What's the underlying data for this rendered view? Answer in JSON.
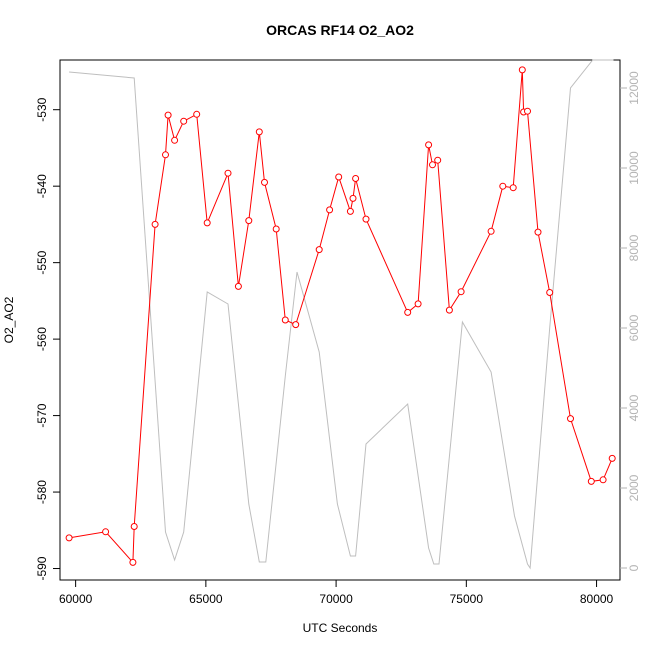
{
  "chart_data": {
    "type": "line",
    "title": "ORCAS RF14 O2_AO2",
    "xlabel": "UTC Seconds",
    "ylabel": "O2_AO2",
    "xlim": [
      59400,
      80900
    ],
    "ylim": [
      -591.5,
      -523.5
    ],
    "y2lim": [
      -300,
      12700
    ],
    "x_ticks": [
      60000,
      65000,
      70000,
      75000,
      80000
    ],
    "x_tick_labels": [
      "60000",
      "65000",
      "70000",
      "75000",
      "80000"
    ],
    "y_ticks": [
      -590,
      -580,
      -570,
      -560,
      -550,
      -540,
      -530
    ],
    "y_tick_labels": [
      "-590",
      "-580",
      "-570",
      "-560",
      "-550",
      "-540",
      "-530"
    ],
    "y2_ticks": [
      0,
      2000,
      4000,
      6000,
      8000,
      10000,
      12000
    ],
    "y2_tick_labels": [
      "0",
      "2000",
      "4000",
      "6000",
      "8000",
      "10000",
      "12000"
    ],
    "grid": false,
    "legend": "none",
    "series": [
      {
        "color": "#ff0000",
        "marker": "open-circle",
        "axis": "left",
        "x": [
          59750,
          61150,
          62200,
          62250,
          63050,
          63450,
          63550,
          63800,
          64150,
          64650,
          65050,
          65850,
          66250,
          66650,
          67050,
          67250,
          67700,
          68050,
          68450,
          69350,
          69750,
          70100,
          70550,
          70650,
          70750,
          71150,
          72750,
          73150,
          73550,
          73700,
          73900,
          74350,
          74800,
          75950,
          76400,
          76800,
          77150,
          77200,
          77350,
          77750,
          78200,
          79000,
          79800,
          80250,
          80600
        ],
        "y": [
          -586,
          -585.2,
          -589.2,
          -584.5,
          -545,
          -535.9,
          -530.7,
          -534,
          -531.5,
          -530.6,
          -544.8,
          -538.3,
          -553.1,
          -544.5,
          -532.9,
          -539.5,
          -545.6,
          -557.5,
          -558.1,
          -548.3,
          -543.1,
          -538.8,
          -543.3,
          -541.6,
          -539,
          -544.3,
          -556.5,
          -555.4,
          -534.6,
          -537.2,
          -536.6,
          -556.2,
          -553.8,
          -545.9,
          -540,
          -540.2,
          -524.8,
          -530.3,
          -530.2,
          -546,
          -553.9,
          -570.4,
          -578.6,
          -578.4,
          -575.6
        ]
      },
      {
        "color": "#bebebe",
        "marker": "none",
        "axis": "right",
        "x": [
          59750,
          62250,
          63450,
          63800,
          64150,
          65050,
          65850,
          66650,
          67050,
          67300,
          68050,
          68500,
          69350,
          70050,
          70550,
          70750,
          71150,
          72750,
          73550,
          73750,
          73950,
          74850,
          75950,
          76850,
          77350,
          77450,
          78200,
          79000,
          79850,
          80650
        ],
        "y": [
          12400,
          12250,
          900,
          200,
          900,
          6900,
          6600,
          1600,
          150,
          150,
          4800,
          7400,
          5400,
          1600,
          300,
          300,
          3100,
          4100,
          500,
          100,
          100,
          6150,
          4900,
          1300,
          100,
          0,
          6000,
          12000,
          12700,
          12700
        ]
      }
    ]
  }
}
